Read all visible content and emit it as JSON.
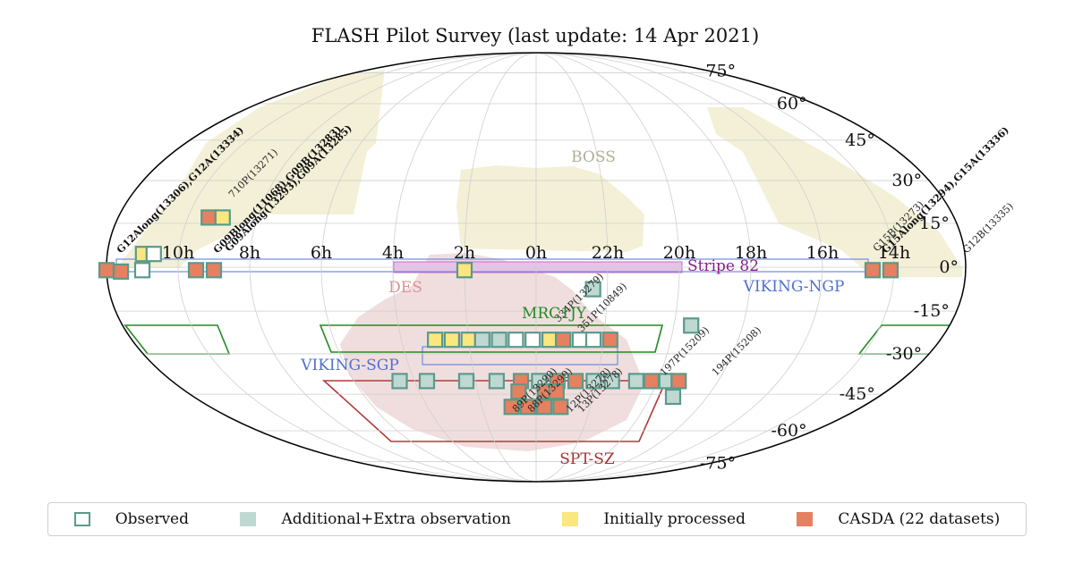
{
  "chart_data": {
    "type": "scatter",
    "projection": "mollweide",
    "title": "FLASH Pilot Survey (last update: 14 Apr 2021)",
    "grid": true,
    "ra_ticks": [
      "10h",
      "8h",
      "6h",
      "4h",
      "2h",
      "0h",
      "22h",
      "20h",
      "18h",
      "16h",
      "14h"
    ],
    "dec_ticks": [
      "75°",
      "60°",
      "45°",
      "30°",
      "15°",
      "0°",
      "-15°",
      "-30°",
      "-45°",
      "-60°",
      "-75°"
    ],
    "colors": {
      "observed_edge": "#5b9a8b",
      "additional_fill": "#bfd8d2",
      "processed_fill": "#fbe680",
      "casda_fill": "#e58060",
      "boss": "#f3f0d7",
      "des": "#f0dede",
      "mrc1jy": "#228b22",
      "viking": "#6f8be0",
      "stripe82": "#c76fc7",
      "sptsz": "#b03a3a"
    },
    "regions": [
      {
        "name": "BOSS",
        "color": "#b3ae96"
      },
      {
        "name": "DES",
        "color": "#d89494"
      },
      {
        "name": "MRC1JY",
        "color": "#228b22"
      },
      {
        "name": "VIKING-SGP",
        "color": "#4f6fd0"
      },
      {
        "name": "VIKING-NGP",
        "color": "#4f6fd0"
      },
      {
        "name": "Stripe 82",
        "color": "#8b1e8b"
      },
      {
        "name": "SPT-SZ",
        "color": "#a83232"
      }
    ],
    "field_labels": [
      {
        "text": "G12Along(13306),G12A(13334)",
        "bold": true
      },
      {
        "text": "710P(13271)",
        "bold": false
      },
      {
        "text": "G09Blong(11068),G09B(13283)",
        "bold": true
      },
      {
        "text": "G09Along(13293),G09A(13285)",
        "bold": true
      },
      {
        "text": "334P(13279)",
        "bold": false
      },
      {
        "text": "351P(10849)",
        "bold": false
      },
      {
        "text": "G15B(13273)",
        "bold": false
      },
      {
        "text": "G15Along(13294),G15A(13336)",
        "bold": true
      },
      {
        "text": "G12B(13335)",
        "bold": false
      },
      {
        "text": "197P(15209)",
        "bold": false
      },
      {
        "text": "194P(15208)",
        "bold": false
      },
      {
        "text": "89P(13290)",
        "bold": false
      },
      {
        "text": "88P(13299)",
        "bold": false
      },
      {
        "text": "12P(13278)",
        "bold": false
      },
      {
        "text": "13P(13278)",
        "bold": false
      }
    ],
    "fields": [
      {
        "ra": 11.6,
        "dec": -1.5,
        "status": "casda"
      },
      {
        "ra": 11.0,
        "dec": 4.5,
        "status": "processed"
      },
      {
        "ra": 10.7,
        "dec": 4.5,
        "status": "observed"
      },
      {
        "ra": 11.0,
        "dec": -1.0,
        "status": "observed"
      },
      {
        "ra": 9.4,
        "dec": 17.0,
        "status": "casda"
      },
      {
        "ra": 9.0,
        "dec": 17.0,
        "status": "processed"
      },
      {
        "ra": 9.5,
        "dec": -1.0,
        "status": "casda"
      },
      {
        "ra": 9.0,
        "dec": -1.0,
        "status": "casda"
      },
      {
        "ra": 2.0,
        "dec": -1.0,
        "status": "processed"
      },
      {
        "ra": 22.4,
        "dec": -7.5,
        "status": "additional"
      },
      {
        "ra": 14.6,
        "dec": -1.0,
        "status": "casda"
      },
      {
        "ra": 14.1,
        "dec": -1.0,
        "status": "casda"
      },
      {
        "ra": 12.0,
        "dec": -1.0,
        "status": "casda"
      },
      {
        "ra": 3.0,
        "dec": -25.0,
        "status": "processed"
      },
      {
        "ra": 2.5,
        "dec": -25.0,
        "status": "processed"
      },
      {
        "ra": 2.0,
        "dec": -25.0,
        "status": "processed"
      },
      {
        "ra": 1.6,
        "dec": -25.0,
        "status": "additional"
      },
      {
        "ra": 1.1,
        "dec": -25.0,
        "status": "additional"
      },
      {
        "ra": 0.6,
        "dec": -25.0,
        "status": "observed"
      },
      {
        "ra": 0.1,
        "dec": -25.0,
        "status": "observed"
      },
      {
        "ra": 23.6,
        "dec": -25.0,
        "status": "processed"
      },
      {
        "ra": 23.2,
        "dec": -25.0,
        "status": "casda"
      },
      {
        "ra": 22.7,
        "dec": -25.0,
        "status": "observed"
      },
      {
        "ra": 22.3,
        "dec": -25.0,
        "status": "observed"
      },
      {
        "ra": 21.8,
        "dec": -25.0,
        "status": "casda"
      },
      {
        "ra": 19.5,
        "dec": -20.0,
        "status": "additional"
      },
      {
        "ra": 4.5,
        "dec": -40.0,
        "status": "additional"
      },
      {
        "ra": 3.6,
        "dec": -40.0,
        "status": "additional"
      },
      {
        "ra": 2.3,
        "dec": -40.0,
        "status": "additional"
      },
      {
        "ra": 1.3,
        "dec": -40.0,
        "status": "additional"
      },
      {
        "ra": 0.5,
        "dec": -40.0,
        "status": "casda"
      },
      {
        "ra": 23.9,
        "dec": -40.0,
        "status": "additional"
      },
      {
        "ra": 23.3,
        "dec": -40.0,
        "status": "casda"
      },
      {
        "ra": 22.7,
        "dec": -40.0,
        "status": "casda"
      },
      {
        "ra": 22.1,
        "dec": -40.0,
        "status": "additional"
      },
      {
        "ra": 21.5,
        "dec": -40.0,
        "status": "additional"
      },
      {
        "ra": 20.7,
        "dec": -40.0,
        "status": "additional"
      },
      {
        "ra": 20.2,
        "dec": -40.0,
        "status": "casda"
      },
      {
        "ra": 19.7,
        "dec": -40.0,
        "status": "additional"
      },
      {
        "ra": 19.3,
        "dec": -40.0,
        "status": "casda"
      },
      {
        "ra": 19.2,
        "dec": -46.0,
        "status": "additional"
      },
      {
        "ra": 0.6,
        "dec": -44.0,
        "status": "casda"
      },
      {
        "ra": 23.7,
        "dec": -44.0,
        "status": "casda"
      },
      {
        "ra": 23.3,
        "dec": -44.0,
        "status": "casda"
      },
      {
        "ra": 0.9,
        "dec": -50.0,
        "status": "casda"
      },
      {
        "ra": 0.3,
        "dec": -50.0,
        "status": "casda"
      },
      {
        "ra": 23.7,
        "dec": -50.0,
        "status": "casda"
      },
      {
        "ra": 23.1,
        "dec": -50.0,
        "status": "casda"
      }
    ]
  },
  "legend": [
    {
      "label": "Observed",
      "style": "observed"
    },
    {
      "label": "Additional+Extra observation",
      "style": "additional"
    },
    {
      "label": "Initially processed",
      "style": "processed"
    },
    {
      "label": "CASDA (22 datasets)",
      "style": "casda"
    }
  ]
}
